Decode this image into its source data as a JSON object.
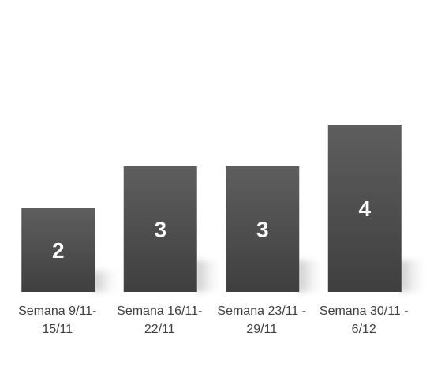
{
  "chart_data": {
    "type": "bar",
    "title": "",
    "xlabel": "",
    "ylabel": "",
    "categories": [
      [
        "Semana 9/11-",
        "15/11"
      ],
      [
        "Semana 16/11-",
        "22/11"
      ],
      [
        "Semana 23/11 -",
        "29/11"
      ],
      [
        "Semana 30/11  -",
        "6/12"
      ]
    ],
    "values": [
      2,
      3,
      3,
      4
    ],
    "ylim": [
      0,
      4
    ],
    "grid": false,
    "legend": "none",
    "colors": {
      "bar_top": "#5e5e5e",
      "bar_bottom": "#3f3f3f",
      "data_label": "#ffffff",
      "category_label": "#404040"
    }
  }
}
